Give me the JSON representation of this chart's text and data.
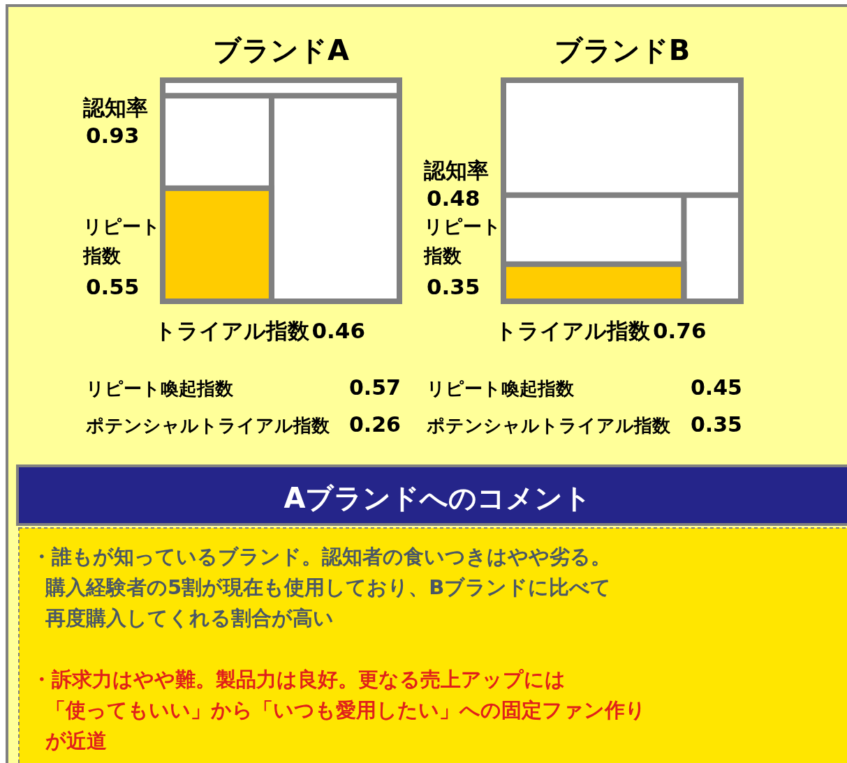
{
  "chart_data": [
    {
      "type": "other",
      "title": "ブランドA",
      "categories": [
        "認知率",
        "リピート指数",
        "トライアル指数",
        "リピート喚起指数",
        "ポテンシャルトライアル指数"
      ],
      "values": [
        0.93,
        0.55,
        0.46,
        0.57,
        0.26
      ],
      "data_labels": true,
      "color": "#ffcc00"
    },
    {
      "type": "other",
      "title": "ブランドB",
      "categories": [
        "認知率",
        "リピート指数",
        "トライアル指数",
        "リピート喚起指数",
        "ポテンシャルトライアル指数"
      ],
      "values": [
        0.48,
        0.35,
        0.76,
        0.45,
        0.35
      ],
      "data_labels": true,
      "color": "#ffcc00"
    },
    {
      "type": "other",
      "title": "Aブランドへのコメント",
      "annotations": [
        "・誰もが知っているブランド。認知者の食いつきはやや劣る。",
        "購入経験者の5割が現在も使用しており、Bブランドに比べて",
        "再度購入してくれる割合が高い",
        "・訴求力はやや難。製品力は良好。更なる売上アップには",
        "「使ってもいい」から「いつも愛用したい」への固定ファン作り",
        "が近道"
      ],
      "colors": [
        "#4a5766",
        "#4a5766",
        "#4a5766",
        "#e0201a",
        "#e0201a",
        "#e0201a"
      ]
    }
  ]
}
